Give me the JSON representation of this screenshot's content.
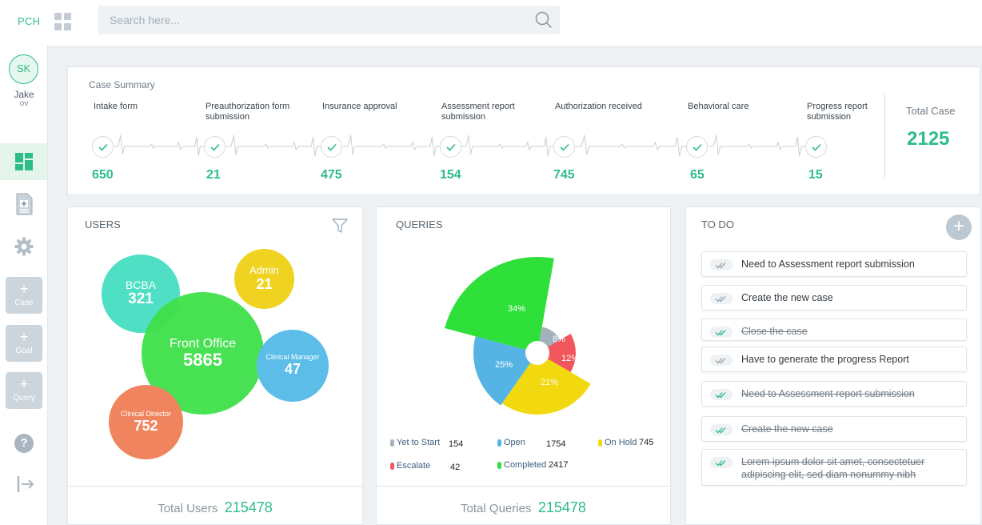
{
  "app": {
    "logo": "PCH"
  },
  "search": {
    "placeholder": "Search here..."
  },
  "user": {
    "initials": "SK",
    "name": "Jake",
    "sub": "ov"
  },
  "sidebar": {
    "add_buttons": [
      {
        "label": "Case"
      },
      {
        "label": "Goal"
      },
      {
        "label": "Query"
      }
    ],
    "help_symbol": "?"
  },
  "case_summary": {
    "title": "Case Summary",
    "stages": [
      {
        "label": "Intake form",
        "value": "650"
      },
      {
        "label": "Preauthorization form submission",
        "value": "21"
      },
      {
        "label": "Insurance approval",
        "value": "475"
      },
      {
        "label": "Assessment report submission",
        "value": "154"
      },
      {
        "label": "Authorization received",
        "value": "745"
      },
      {
        "label": "Behavioral care",
        "value": "65"
      },
      {
        "label": "Progress report submission",
        "value": "15"
      }
    ],
    "total_label": "Total Case",
    "total_value": "2125"
  },
  "users": {
    "title": "USERS",
    "bubbles": [
      {
        "name": "BCBA",
        "value": "321",
        "color": "#3ddcbf"
      },
      {
        "name": "Admin",
        "value": "21",
        "color": "#f0d320"
      },
      {
        "name": "Front Office",
        "value": "5865",
        "color": "#3fe04a"
      },
      {
        "name": "Clinical Manager",
        "value": "47",
        "color": "#5cbde8"
      },
      {
        "name": "Clinical Director",
        "value": "752",
        "color": "#f0845f"
      }
    ],
    "total_label": "Total Users",
    "total_value": "215478"
  },
  "queries": {
    "title": "QUERIES",
    "chart_data": {
      "type": "pie",
      "slices": [
        {
          "name": "Completed",
          "percent": 34,
          "value": "2417",
          "color": "#2fe03a"
        },
        {
          "name": "Yet to Start",
          "percent": 8,
          "value": "154",
          "color": "#a3b1bc"
        },
        {
          "name": "Escalate",
          "percent": 12,
          "value": "42",
          "color": "#f0575d"
        },
        {
          "name": "On Hold",
          "percent": 21,
          "value": "745",
          "color": "#f2d80f"
        },
        {
          "name": "Open",
          "percent": 25,
          "value": "1754",
          "color": "#56b4e4"
        }
      ],
      "labels": [
        "34%",
        "8%",
        "12%",
        "21%",
        "25%"
      ]
    },
    "total_label": "Total Queries",
    "total_value": "215478"
  },
  "todo": {
    "title": "TO DO",
    "add_symbol": "+",
    "items": [
      {
        "text": "Need to Assessment report submission",
        "done": false
      },
      {
        "text": "Create the new case",
        "done": false
      },
      {
        "text": "Close the case",
        "done": true
      },
      {
        "text": "Have to generate the progress Report",
        "done": false
      },
      {
        "text": "Need to Assessment report submission",
        "done": true
      },
      {
        "text": "Create the new case",
        "done": true
      },
      {
        "text": "Lorem ipsum dolor sit amet, consectetuer adipiscing elit, sed diam nonummy nibh",
        "done": true
      }
    ]
  },
  "colors": {
    "accent": "#2ebc8a",
    "check_green": "#2ebc8a",
    "check_grey": "#9aa5ae"
  }
}
